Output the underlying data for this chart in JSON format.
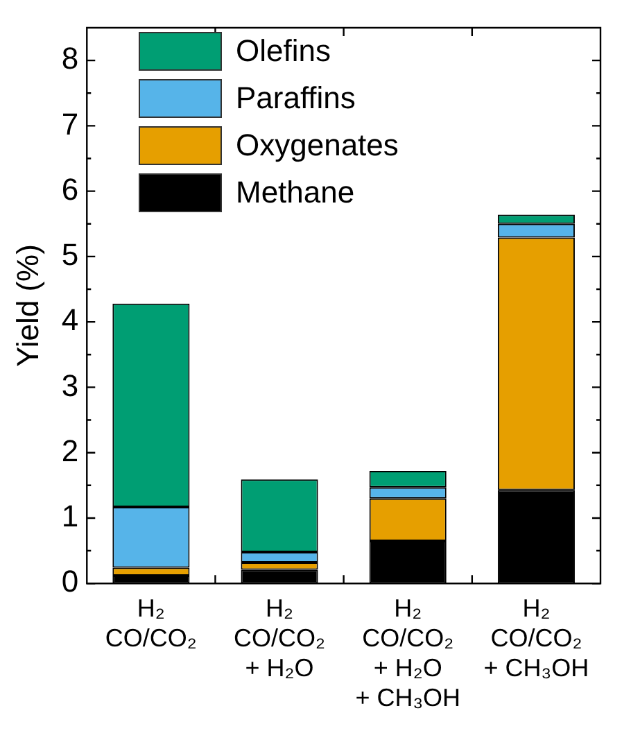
{
  "chart_data": {
    "type": "bar",
    "stacked": true,
    "ylabel": "Yield (%)",
    "categories": [
      "H₂\nCO/CO₂",
      "H₂\nCO/CO₂\n+ H₂O",
      "H₂\nCO/CO₂\n+ H₂O\n+ CH₃OH",
      "H₂\nCO/CO₂\n+ CH₃OH"
    ],
    "series": [
      {
        "name": "Methane",
        "color": "#000000",
        "values": [
          0.12,
          0.21,
          0.65,
          1.43
        ]
      },
      {
        "name": "Oxygenates",
        "color": "#e69f00",
        "values": [
          0.12,
          0.11,
          0.65,
          3.86
        ]
      },
      {
        "name": "Paraffins",
        "color": "#56b4e9",
        "values": [
          0.93,
          0.16,
          0.17,
          0.21
        ]
      },
      {
        "name": "Olefins",
        "color": "#009e73",
        "values": [
          3.11,
          1.11,
          0.25,
          0.14
        ]
      }
    ],
    "ylim": [
      0,
      8.5
    ],
    "yticks": [
      0,
      {
        "value": 0.5,
        "label": null
      },
      1,
      {
        "value": 1.5,
        "label": null
      },
      2,
      {
        "value": 2.5,
        "label": null
      },
      3,
      {
        "value": 3.5,
        "label": null
      },
      4,
      {
        "value": 4.5,
        "label": null
      },
      5,
      {
        "value": 5.5,
        "label": null
      },
      6,
      {
        "value": 6.5,
        "label": null
      },
      7,
      {
        "value": 7.5,
        "label": null
      },
      8
    ],
    "legend": "top left",
    "grid": false
  }
}
